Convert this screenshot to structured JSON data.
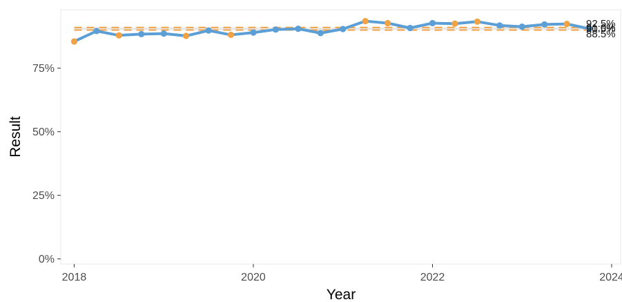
{
  "chart_data": {
    "type": "line",
    "title": "",
    "xlabel": "Year",
    "ylabel": "Result",
    "xlim": [
      2017.85,
      2024.1
    ],
    "ylim": [
      -0.02,
      0.98
    ],
    "x_ticks": [
      2018,
      2020,
      2022,
      2024
    ],
    "y_ticks": [
      0,
      0.25,
      0.5,
      0.75
    ],
    "y_tick_labels": [
      "0%",
      "25%",
      "50%",
      "75%"
    ],
    "grid": false,
    "legend": "none",
    "series": [
      {
        "x": [
          2018.0,
          2018.25,
          2018.5,
          2018.75,
          2019.0,
          2019.25,
          2019.5,
          2019.75,
          2020.0,
          2020.25,
          2020.5,
          2020.75,
          2021.0,
          2021.25,
          2021.5,
          2021.75,
          2022.0,
          2022.25,
          2022.5,
          2022.75,
          2023.0,
          2023.25,
          2023.5,
          2023.75
        ],
        "y": [
          0.855,
          0.896,
          0.879,
          0.884,
          0.886,
          0.877,
          0.898,
          0.881,
          0.89,
          0.902,
          0.905,
          0.888,
          0.904,
          0.935,
          0.927,
          0.908,
          0.927,
          0.925,
          0.933,
          0.918,
          0.913,
          0.922,
          0.924,
          0.905
        ],
        "point_colors": [
          "#f0a244",
          "#5b9fd6",
          "#f0a244",
          "#5b9fd6",
          "#5b9fd6",
          "#f0a244",
          "#5b9fd6",
          "#f0a244",
          "#5b9fd6",
          "#5b9fd6",
          "#5b9fd6",
          "#5b9fd6",
          "#5b9fd6",
          "#f0a244",
          "#f0a244",
          "#5b9fd6",
          "#5b9fd6",
          "#f0a244",
          "#f0a244",
          "#5b9fd6",
          "#5b9fd6",
          "#5b9fd6",
          "#f0a244",
          "#5b9fd6"
        ],
        "color": "#5b9fd6"
      }
    ],
    "reference_lines": [
      {
        "y": 0.9,
        "style": "dashed",
        "color": "#f0a244"
      },
      {
        "y": 0.91,
        "style": "dashed",
        "color": "#f0a244"
      }
    ],
    "band": {
      "y_from": 0.9,
      "y_to": 0.91,
      "color": "#e6e6e6"
    },
    "end_labels": [
      {
        "y": 0.925,
        "text": "92.5%"
      },
      {
        "y": 0.905,
        "text": "90.5%"
      },
      {
        "y": 0.91,
        "text": "91.0%"
      },
      {
        "y": 0.885,
        "text": "88.5%"
      }
    ]
  }
}
